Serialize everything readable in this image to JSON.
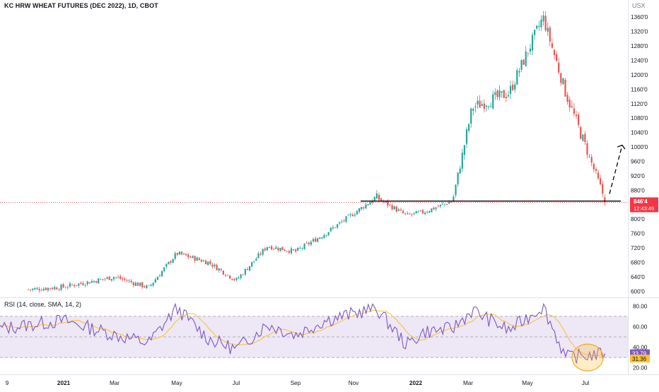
{
  "header": {
    "title": "KC HRW WHEAT FUTURES (DEC 2022), 1D, CBOT",
    "currency": "USX"
  },
  "price_badge": {
    "value": "846'4",
    "countdown": "12:43:46",
    "color": "#f23645"
  },
  "rsi": {
    "label": "RSI (14, close, SMA, 14, 2)",
    "value_label": "33.79",
    "ma_label": "31.36",
    "line_color": "#7e57c2",
    "ma_color": "#fbc02d",
    "band_fill": "#ede7f6"
  },
  "colors": {
    "up": "#26a69a",
    "down": "#ef5350"
  },
  "chart_data": [
    {
      "type": "candlestick",
      "title": "KC HRW WHEAT FUTURES (DEC 2022), 1D, CBOT",
      "y_ticks": [
        "1360'0",
        "1320'0",
        "1280'0",
        "1240'0",
        "1200'0",
        "1160'0",
        "1120'0",
        "1080'0",
        "1040'0",
        "1000'0",
        "960'0",
        "920'0",
        "880'0",
        "840'0",
        "800'0",
        "760'0",
        "720'0",
        "680'0",
        "640'0",
        "600'0"
      ],
      "ylim": [
        585,
        1380
      ],
      "x_ticks": [
        "9",
        "2021",
        "Mar",
        "May",
        "Jul",
        "Sep",
        "Nov",
        "2022",
        "Mar",
        "May",
        "Jul"
      ],
      "close_series": [
        {
          "x": "Jan 2021",
          "y": 600
        },
        {
          "x": "Feb 2021",
          "y": 612
        },
        {
          "x": "Mar 2021",
          "y": 640
        },
        {
          "x": "Apr 2021",
          "y": 610
        },
        {
          "x": "May 2021",
          "y": 705
        },
        {
          "x": "Jun 2021",
          "y": 680
        },
        {
          "x": "Jul 2021",
          "y": 630
        },
        {
          "x": "Aug 2021",
          "y": 725
        },
        {
          "x": "Sep 2021",
          "y": 710
        },
        {
          "x": "Oct 2021",
          "y": 760
        },
        {
          "x": "Nov 2021",
          "y": 860
        },
        {
          "x": "Dec 2021",
          "y": 810
        },
        {
          "x": "Jan 2022",
          "y": 820
        },
        {
          "x": "Feb 2022",
          "y": 850
        },
        {
          "x": "Mar 2022",
          "y": 1110
        },
        {
          "x": "Apr 2022",
          "y": 1150
        },
        {
          "x": "May 2022",
          "y": 1360
        },
        {
          "x": "Jun 2022",
          "y": 1150
        },
        {
          "x": "Jul 2022",
          "y": 846.5
        }
      ],
      "support_level": 850,
      "last_price": 846.5
    },
    {
      "type": "line",
      "title": "RSI (14, close, SMA, 14, 2)",
      "y_ticks": [
        "80.00",
        "60.00",
        "40.00",
        "20.00"
      ],
      "ylim": [
        15,
        85
      ],
      "bands": [
        70,
        50,
        30
      ],
      "rsi_series": [
        {
          "x": "Jan 2021",
          "y": 58
        },
        {
          "x": "Feb 2021",
          "y": 66
        },
        {
          "x": "Mar 2021",
          "y": 52
        },
        {
          "x": "Apr 2021",
          "y": 44
        },
        {
          "x": "May 2021",
          "y": 78
        },
        {
          "x": "Jun 2021",
          "y": 48
        },
        {
          "x": "Jul 2021",
          "y": 38
        },
        {
          "x": "Aug 2021",
          "y": 62
        },
        {
          "x": "Sep 2021",
          "y": 52
        },
        {
          "x": "Oct 2021",
          "y": 66
        },
        {
          "x": "Nov 2021",
          "y": 78
        },
        {
          "x": "Dec 2021",
          "y": 42
        },
        {
          "x": "Jan 2022",
          "y": 55
        },
        {
          "x": "Feb 2022",
          "y": 58
        },
        {
          "x": "Mar 2022",
          "y": 76
        },
        {
          "x": "Apr 2022",
          "y": 56
        },
        {
          "x": "May 2022",
          "y": 80
        },
        {
          "x": "Jun 2022",
          "y": 30
        },
        {
          "x": "Jul 2022",
          "y": 33.79
        }
      ],
      "last_rsi": 33.79,
      "last_rsi_ma": 31.36
    }
  ]
}
